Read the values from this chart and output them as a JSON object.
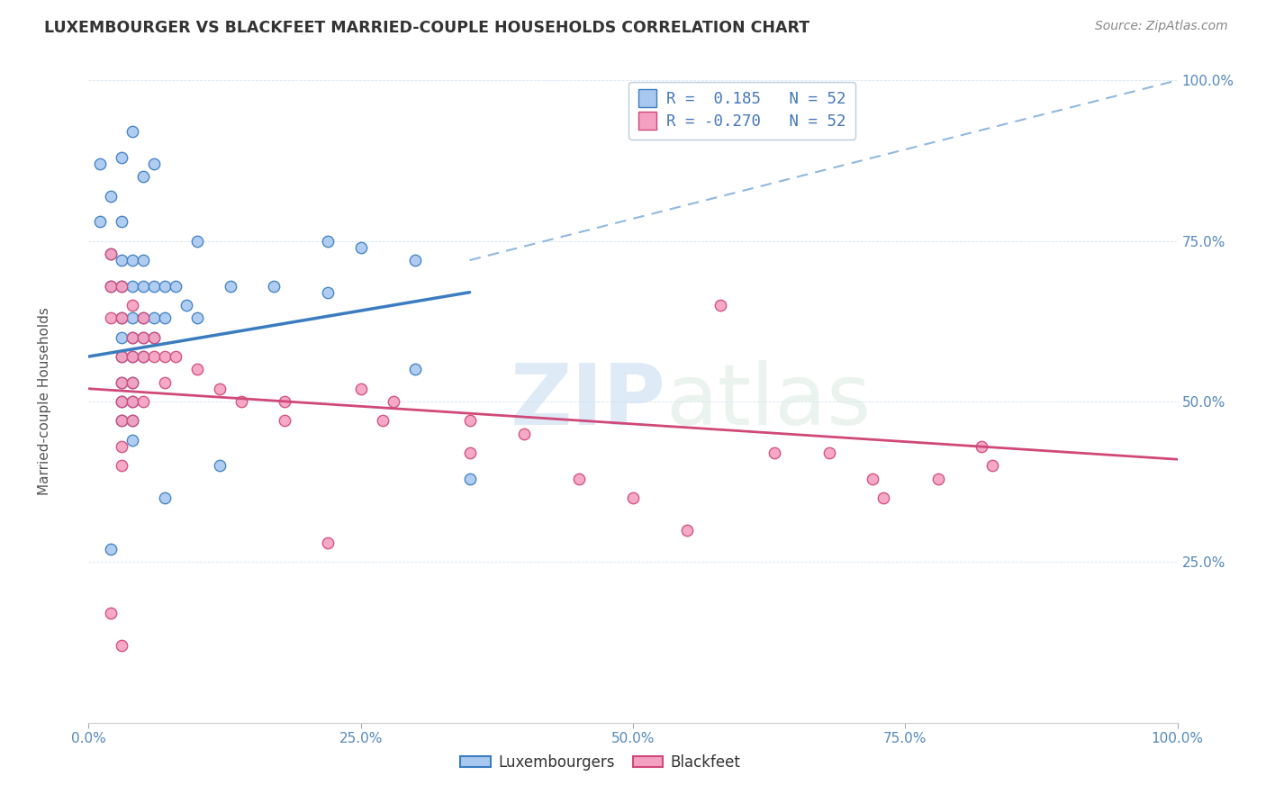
{
  "title": "LUXEMBOURGER VS BLACKFEET MARRIED-COUPLE HOUSEHOLDS CORRELATION CHART",
  "source": "Source: ZipAtlas.com",
  "ylabel": "Married-couple Households",
  "xlim": [
    0.0,
    1.0
  ],
  "ylim": [
    0.0,
    1.0
  ],
  "xticks": [
    0.0,
    0.25,
    0.5,
    0.75,
    1.0
  ],
  "yticks": [
    0.25,
    0.5,
    0.75,
    1.0
  ],
  "xticklabels": [
    "0.0%",
    "25.0%",
    "50.0%",
    "75.0%",
    "100.0%"
  ],
  "yticklabels": [
    "25.0%",
    "50.0%",
    "75.0%",
    "100.0%"
  ],
  "r_blue": 0.185,
  "r_pink": -0.27,
  "color_blue": "#A8C8F0",
  "color_pink": "#F4A0C0",
  "color_blue_line": "#3A7CC0",
  "color_pink_line": "#D04878",
  "color_dashed": "#90B8E0",
  "watermark_zip": "ZIP",
  "watermark_atlas": "atlas",
  "blue_scatter": [
    [
      0.01,
      0.87
    ],
    [
      0.01,
      0.78
    ],
    [
      0.02,
      0.82
    ],
    [
      0.02,
      0.73
    ],
    [
      0.02,
      0.68
    ],
    [
      0.03,
      0.78
    ],
    [
      0.03,
      0.72
    ],
    [
      0.03,
      0.68
    ],
    [
      0.03,
      0.63
    ],
    [
      0.03,
      0.6
    ],
    [
      0.03,
      0.57
    ],
    [
      0.03,
      0.53
    ],
    [
      0.03,
      0.5
    ],
    [
      0.03,
      0.47
    ],
    [
      0.04,
      0.72
    ],
    [
      0.04,
      0.68
    ],
    [
      0.04,
      0.63
    ],
    [
      0.04,
      0.6
    ],
    [
      0.04,
      0.57
    ],
    [
      0.04,
      0.53
    ],
    [
      0.04,
      0.5
    ],
    [
      0.04,
      0.47
    ],
    [
      0.04,
      0.44
    ],
    [
      0.05,
      0.72
    ],
    [
      0.05,
      0.68
    ],
    [
      0.05,
      0.63
    ],
    [
      0.05,
      0.6
    ],
    [
      0.05,
      0.57
    ],
    [
      0.06,
      0.68
    ],
    [
      0.06,
      0.63
    ],
    [
      0.06,
      0.6
    ],
    [
      0.07,
      0.68
    ],
    [
      0.07,
      0.63
    ],
    [
      0.08,
      0.68
    ],
    [
      0.09,
      0.65
    ],
    [
      0.1,
      0.63
    ],
    [
      0.12,
      0.4
    ],
    [
      0.17,
      0.68
    ],
    [
      0.22,
      0.67
    ],
    [
      0.07,
      0.35
    ],
    [
      0.02,
      0.27
    ],
    [
      0.3,
      0.55
    ],
    [
      0.22,
      0.75
    ],
    [
      0.25,
      0.74
    ],
    [
      0.3,
      0.72
    ],
    [
      0.35,
      0.38
    ],
    [
      0.03,
      0.88
    ],
    [
      0.04,
      0.92
    ],
    [
      0.05,
      0.85
    ],
    [
      0.06,
      0.87
    ],
    [
      0.1,
      0.75
    ],
    [
      0.13,
      0.68
    ]
  ],
  "pink_scatter": [
    [
      0.02,
      0.73
    ],
    [
      0.02,
      0.68
    ],
    [
      0.02,
      0.63
    ],
    [
      0.03,
      0.68
    ],
    [
      0.03,
      0.63
    ],
    [
      0.03,
      0.57
    ],
    [
      0.03,
      0.53
    ],
    [
      0.03,
      0.5
    ],
    [
      0.03,
      0.47
    ],
    [
      0.03,
      0.43
    ],
    [
      0.03,
      0.4
    ],
    [
      0.04,
      0.65
    ],
    [
      0.04,
      0.6
    ],
    [
      0.04,
      0.57
    ],
    [
      0.04,
      0.53
    ],
    [
      0.04,
      0.5
    ],
    [
      0.04,
      0.47
    ],
    [
      0.05,
      0.63
    ],
    [
      0.05,
      0.6
    ],
    [
      0.05,
      0.57
    ],
    [
      0.05,
      0.5
    ],
    [
      0.06,
      0.6
    ],
    [
      0.06,
      0.57
    ],
    [
      0.07,
      0.57
    ],
    [
      0.07,
      0.53
    ],
    [
      0.08,
      0.57
    ],
    [
      0.02,
      0.17
    ],
    [
      0.03,
      0.12
    ],
    [
      0.1,
      0.55
    ],
    [
      0.12,
      0.52
    ],
    [
      0.14,
      0.5
    ],
    [
      0.18,
      0.5
    ],
    [
      0.18,
      0.47
    ],
    [
      0.25,
      0.52
    ],
    [
      0.27,
      0.47
    ],
    [
      0.28,
      0.5
    ],
    [
      0.35,
      0.47
    ],
    [
      0.35,
      0.42
    ],
    [
      0.4,
      0.45
    ],
    [
      0.45,
      0.38
    ],
    [
      0.5,
      0.35
    ],
    [
      0.55,
      0.3
    ],
    [
      0.58,
      0.65
    ],
    [
      0.63,
      0.42
    ],
    [
      0.68,
      0.42
    ],
    [
      0.72,
      0.38
    ],
    [
      0.73,
      0.35
    ],
    [
      0.78,
      0.38
    ],
    [
      0.82,
      0.43
    ],
    [
      0.83,
      0.4
    ],
    [
      0.22,
      0.28
    ]
  ],
  "blue_line": [
    [
      0.0,
      0.57
    ],
    [
      0.35,
      0.67
    ]
  ],
  "pink_line": [
    [
      0.0,
      0.52
    ],
    [
      1.0,
      0.41
    ]
  ],
  "dashed_line": [
    [
      0.35,
      0.72
    ],
    [
      1.0,
      1.0
    ]
  ]
}
